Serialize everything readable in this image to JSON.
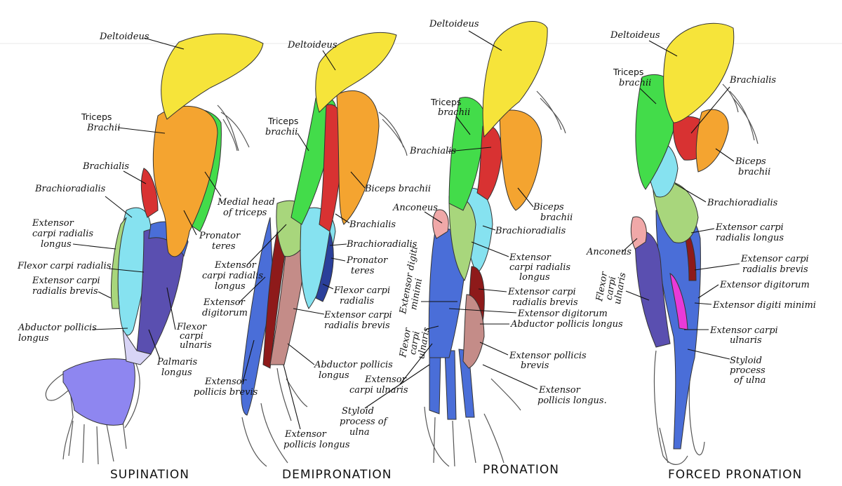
{
  "colors": {
    "deltoid": "#f6e43a",
    "triceps": "#43dc4a",
    "biceps": "#f4a430",
    "brachialis": "#d83232",
    "brachioradialis": "#86e2f0",
    "ext_carpi_longus": "#a8d67c",
    "ext_digitorum": "#4a6ed8",
    "pronator": "#f0a8a8",
    "flexor": "#5a4fb0",
    "palm": "#8e86f0",
    "magenta": "#e83ad8",
    "dark_red": "#8e1a1a",
    "olive": "#7a8a3a"
  },
  "panels": {
    "supination": {
      "caption": "SUPINATION",
      "labels": {
        "deltoideus": "Deltoideus",
        "triceps_a": "Triceps",
        "triceps_b": "Brachii",
        "brachialis": "Brachialis",
        "brachioradialis": "Brachioradialis",
        "ecrl_a": "Extensor",
        "ecrl_b": "carpi radialis",
        "ecrl_c": "longus",
        "fcr": "Flexor carpi radialis",
        "ecrb_a": "Extensor carpi",
        "ecrb_b": "radialis brevis",
        "apl_a": "Abductor pollicis",
        "apl_b": "longus",
        "medial_a": "Medial head",
        "medial_b": "of triceps",
        "pronator_a": "Pronator",
        "pronator_b": "teres",
        "fcu_a": "Flexor",
        "fcu_b": "carpi",
        "fcu_c": "ulnaris",
        "palmaris_a": "Palmaris",
        "palmaris_b": "longus"
      }
    },
    "demipronation": {
      "caption": "DEMIPRONATION",
      "labels": {
        "deltoideus": "Deltoideus",
        "triceps_a": "Triceps",
        "triceps_b": "brachii",
        "biceps": "Biceps brachii",
        "brachialis": "Brachialis",
        "brachioradialis": "Brachioradialis",
        "pronator_a": "Pronator",
        "pronator_b": "teres",
        "ecrl_a": "Extensor",
        "ecrl_b": "carpi radialis",
        "ecrl_c": "longus",
        "ed_a": "Extensor",
        "ed_b": "digitorum",
        "fcr_a": "Flexor carpi",
        "fcr_b": "radialis",
        "ecrb_a": "Extensor carpi",
        "ecrb_b": "radialis brevis",
        "epb_a": "Extensor",
        "epb_b": "pollicis brevis",
        "apl_a": "Abductor pollicis",
        "apl_b": "longus",
        "epl_a": "Extensor",
        "epl_b": "pollicis longus"
      }
    },
    "pronation": {
      "caption": "PRONATION",
      "labels": {
        "deltoideus": "Deltoideus",
        "triceps_a": "Triceps",
        "triceps_b": "brachii",
        "brachialis": "Brachialis",
        "anconeus": "Anconeus",
        "biceps_a": "Biceps",
        "biceps_b": "brachii",
        "brachioradialis": "Brachioradialis",
        "ecrl_a": "Extensor",
        "ecrl_b": "carpi radialis",
        "ecrl_c": "longus",
        "edm_a": "Extensor digiti",
        "edm_b": "minimi",
        "fcu_a": "Flexor",
        "fcu_b": "carpi",
        "fcu_c": "ulnaris",
        "ecrb_a": "Extensor carpi",
        "ecrb_b": "radialis brevis",
        "ed": "Extensor digitorum",
        "apl": "Abductor pollicis longus",
        "epb_a": "Extensor pollicis",
        "epb_b": "brevis",
        "ecu_a": "Extensor",
        "ecu_b": "carpi ulnaris",
        "styloid_a": "Styloid",
        "styloid_b": "process of",
        "styloid_c": "ulna",
        "epl_a": "Extensor",
        "epl_b": "pollicis longus."
      }
    },
    "forced": {
      "caption": "FORCED PRONATION",
      "labels": {
        "deltoideus": "Deltoideus",
        "triceps_a": "Triceps",
        "triceps_b": "brachii",
        "brachialis": "Brachialis",
        "biceps_a": "Biceps",
        "biceps_b": "brachii",
        "brachioradialis": "Brachioradialis",
        "ecrl_a": "Extensor carpi",
        "ecrl_b": "radialis longus",
        "anconeus": "Anconeus",
        "ecrb_a": "Extensor carpi",
        "ecrb_b": "radialis brevis",
        "fcu_a": "Flexor",
        "fcu_b": "carpi",
        "fcu_c": "ulnaris",
        "ed": "Extensor digitorum",
        "edm": "Extensor digiti minimi",
        "ecu_a": "Extensor carpi",
        "ecu_b": "ulnaris",
        "styloid_a": "Styloid",
        "styloid_b": "process",
        "styloid_c": "of ulna"
      }
    }
  }
}
